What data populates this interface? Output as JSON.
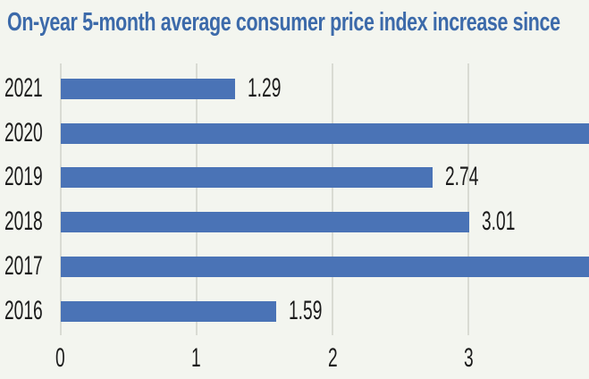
{
  "title": "On-year 5-month average consumer price index increase since",
  "colors": {
    "background": "#f3f5ef",
    "bar": "#4a73b6",
    "grid": "#d9dbd3",
    "title_text": "#3c6aaa",
    "label_text": "#1b1b1b"
  },
  "chart_data": {
    "type": "bar",
    "orientation": "horizontal",
    "title": "On-year 5-month average consumer price index increase since",
    "categories": [
      "2021",
      "2020",
      "2019",
      "2018",
      "2017",
      "2016"
    ],
    "values": [
      1.29,
      null,
      2.74,
      3.01,
      null,
      1.59
    ],
    "value_labels": [
      "1.29",
      "",
      "2.74",
      "3.01",
      "",
      "1.59"
    ],
    "bars_clipped_at_right_edge": [
      "2020",
      "2017"
    ],
    "x_ticks": [
      "0",
      "1",
      "2",
      "3"
    ],
    "x_visible_range": [
      0,
      3.89
    ],
    "grid": "vertical gridlines at integer ticks, no axis frame",
    "legend": "none"
  }
}
